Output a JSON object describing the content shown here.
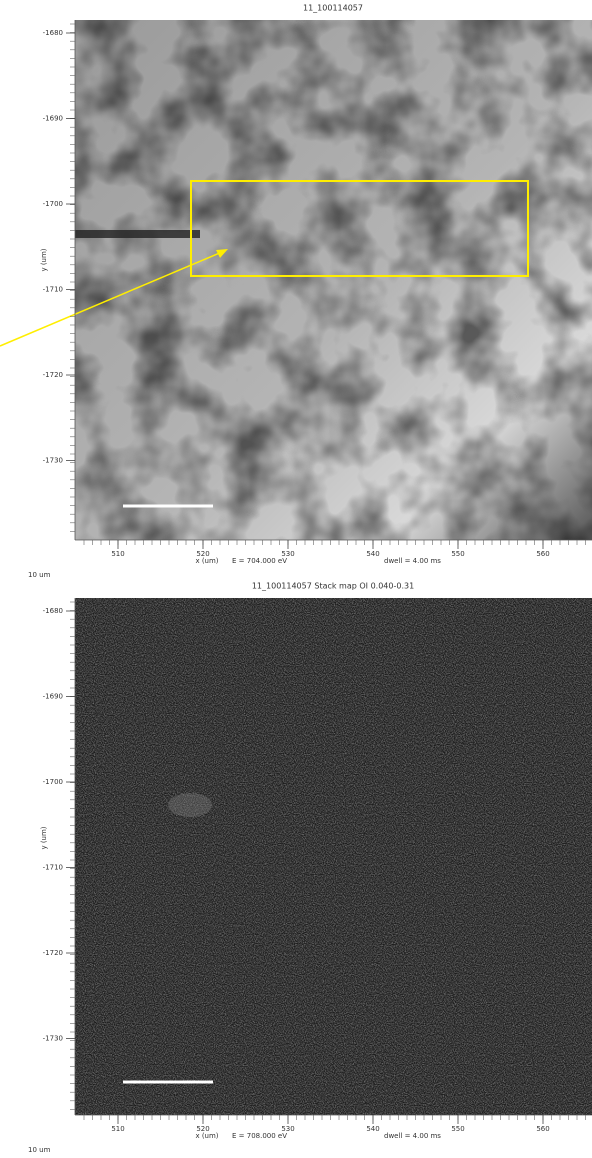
{
  "panels": [
    {
      "title": "11_100114057",
      "y_label": "y (um)",
      "x_label": "x (um)",
      "y_ticks": [
        -1680,
        -1690,
        -1700,
        -1710,
        -1720,
        -1730
      ],
      "x_ticks": [
        510,
        520,
        530,
        540,
        550,
        560
      ],
      "energy": "E = 704.000 eV",
      "dwell": "dwell = 4.00 ms",
      "scale_bar": "10 um"
    },
    {
      "title": "11_100114057 Stack map OI 0.040-0.31",
      "y_label": "y (um)",
      "x_label": "x (um)",
      "y_ticks": [
        -1680,
        -1690,
        -1700,
        -1710,
        -1720,
        -1730
      ],
      "x_ticks": [
        510,
        520,
        530,
        540,
        550,
        560
      ],
      "energy": "E = 708.000 eV",
      "dwell": "dwell = 4.00 ms",
      "scale_bar": "10 um"
    }
  ]
}
